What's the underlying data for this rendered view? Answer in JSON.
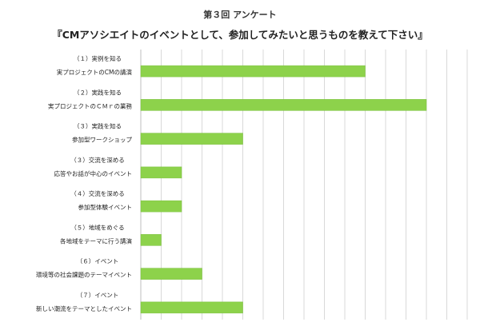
{
  "chart_data": {
    "type": "bar",
    "orientation": "horizontal",
    "supertitle": "第３回 アンケート",
    "title": "『CMアソシエイトのイベントとして、参加してみたいと思うものを教えて下さい』",
    "categories": [
      {
        "line1": "（１）実例を知る",
        "line2": "実プロジェクトのCMの講演"
      },
      {
        "line1": "（２）実践を知る",
        "line2": "実プロジェクトのＣＭｒの業務"
      },
      {
        "line1": "（３）実践を知る",
        "line2": "参加型ワークショップ"
      },
      {
        "line1": "（３）交流を深める",
        "line2": "応答やお話が中心のイベント"
      },
      {
        "line1": "（４）交流を深める",
        "line2": "参加型体験イベント"
      },
      {
        "line1": "（５）地域をめぐる",
        "line2": "各地域をテーマに行う講演"
      },
      {
        "line1": "（６）イベント",
        "line2": "環境等の社会課題のテーマイベント"
      },
      {
        "line1": "（７）イベント",
        "line2": "新しい潮流をテーマとしたイベント"
      }
    ],
    "values": [
      11,
      14,
      5,
      2,
      2,
      1,
      3,
      5
    ],
    "xlim": [
      0,
      16
    ],
    "grid": true,
    "bar_color": "#8dd24b"
  }
}
